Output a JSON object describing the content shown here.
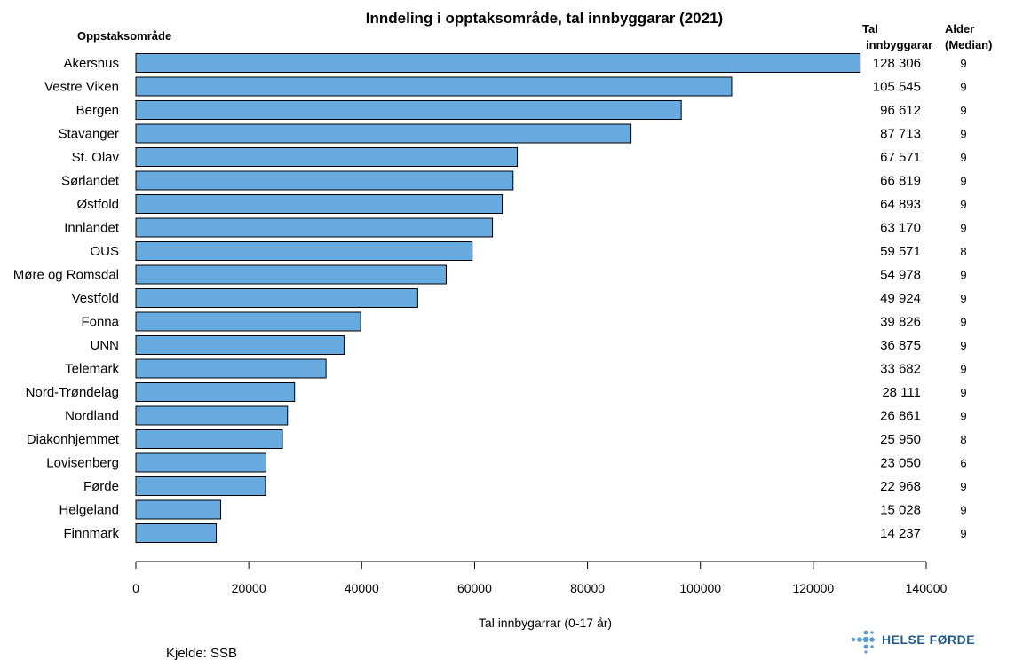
{
  "chart_data": {
    "type": "bar",
    "orientation": "horizontal",
    "title": "Inndeling i opptaksområde, tal innbyggarar (2021)",
    "category_header": "Oppstaksområde",
    "value_header": [
      "Tal",
      "innbyggarar"
    ],
    "age_header": [
      "Alder",
      "(Median)"
    ],
    "xlabel": "Tal innbygarrar (0-17 år)",
    "xlim": [
      0,
      140000
    ],
    "xticks": [
      0,
      20000,
      40000,
      60000,
      80000,
      100000,
      120000,
      140000
    ],
    "bar_color": "#66aadf",
    "categories": [
      "Akershus",
      "Vestre Viken",
      "Bergen",
      "Stavanger",
      "St. Olav",
      "Sørlandet",
      "Østfold",
      "Innlandet",
      "OUS",
      "Møre og Romsdal",
      "Vestfold",
      "Fonna",
      "UNN",
      "Telemark",
      "Nord-Trøndelag",
      "Nordland",
      "Diakonhjemmet",
      "Lovisenberg",
      "Førde",
      "Helgeland",
      "Finnmark"
    ],
    "values": [
      128306,
      105545,
      96612,
      87713,
      67571,
      66819,
      64893,
      63170,
      59571,
      54978,
      49924,
      39826,
      36875,
      33682,
      28111,
      26861,
      25950,
      23050,
      22968,
      15028,
      14237
    ],
    "value_labels": [
      "128 306",
      "105 545",
      "96 612",
      "87 713",
      "67 571",
      "66 819",
      "64 893",
      "63 170",
      "59 571",
      "54 978",
      "49 924",
      "39 826",
      "36 875",
      "33 682",
      "28 111",
      "26 861",
      "25 950",
      "23 050",
      "22 968",
      "15 028",
      "14 237"
    ],
    "median_age": [
      9,
      9,
      9,
      9,
      9,
      9,
      9,
      9,
      8,
      9,
      9,
      9,
      9,
      9,
      9,
      9,
      8,
      6,
      9,
      9,
      9
    ],
    "grid": false,
    "legend": "none"
  },
  "source": "Kjelde: SSB",
  "logo": {
    "text": "HELSE FØRDE",
    "color": "#1f5a8c",
    "dot_color": "#5b9bd5"
  }
}
